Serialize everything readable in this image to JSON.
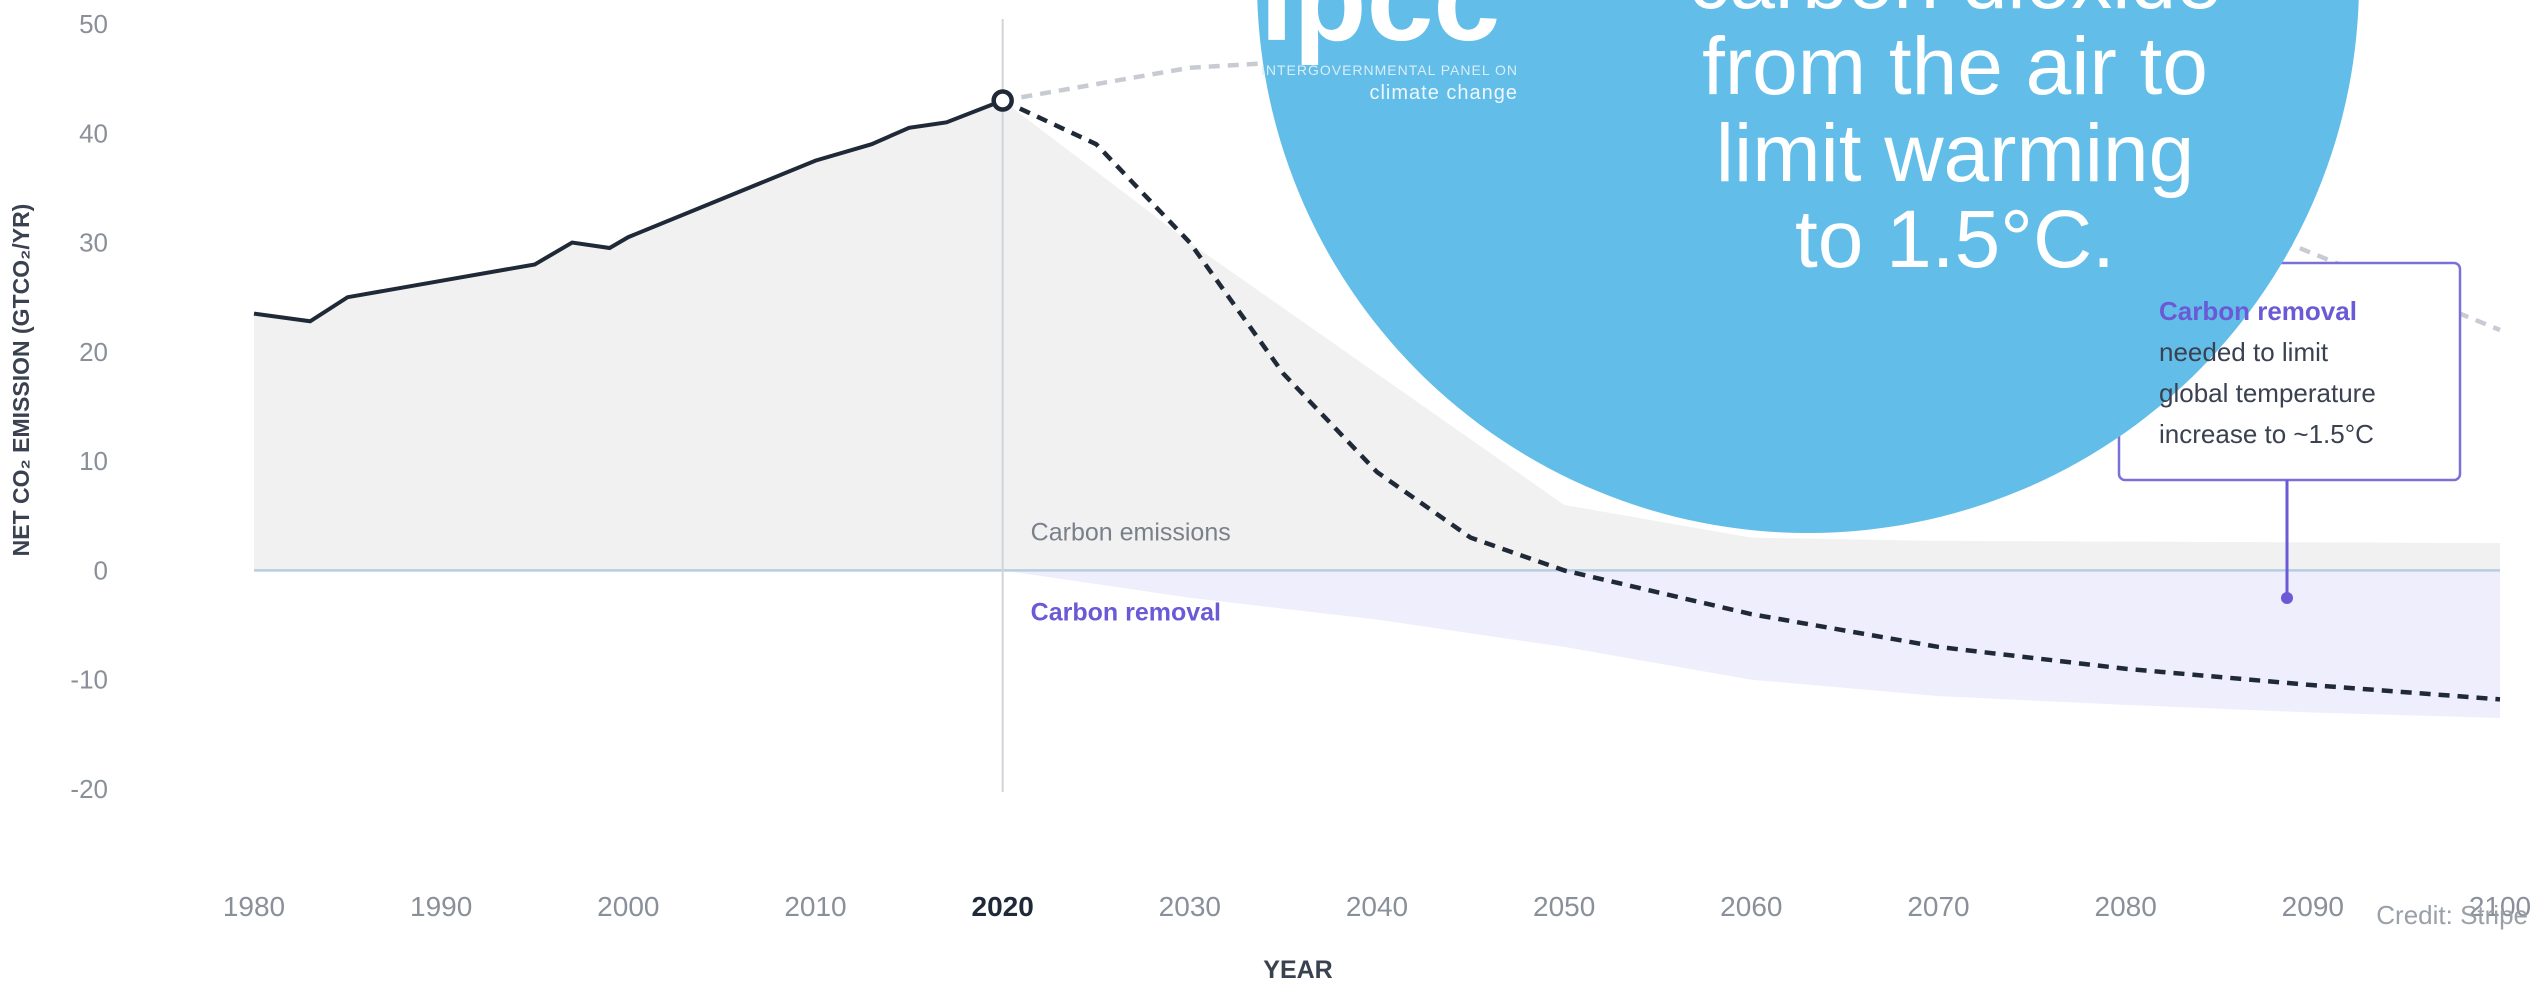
{
  "chart_data": {
    "type": "line",
    "y_label": "NET CO₂ EMISSION (GTCO₂/YR)",
    "x_label": "YEAR",
    "xlim": [
      1980,
      2100
    ],
    "ylim": [
      -20,
      50
    ],
    "xticks": [
      1980,
      1990,
      2000,
      2010,
      2020,
      2030,
      2040,
      2050,
      2060,
      2070,
      2080,
      2090,
      2100
    ],
    "yticks": [
      50,
      40,
      30,
      20,
      10,
      0,
      -10,
      -20
    ],
    "highlight_x": 2020,
    "series": [
      {
        "color": "#1f2937",
        "dash": false,
        "x": [
          1980,
          1983,
          1985,
          1990,
          1995,
          1997,
          1999,
          2000,
          2005,
          2010,
          2013,
          2015,
          2017,
          2020
        ],
        "values": [
          23.5,
          22.8,
          25,
          26.5,
          28,
          30,
          29.5,
          30.5,
          34,
          37.5,
          39,
          40.5,
          41,
          43
        ]
      },
      {
        "color": "#1f2937",
        "dash": true,
        "x": [
          2020,
          2025,
          2030,
          2035,
          2040,
          2045,
          2050,
          2060,
          2070,
          2080,
          2090,
          2100
        ],
        "values": [
          43,
          39,
          30,
          18,
          9,
          3,
          0,
          -4,
          -7,
          -9,
          -10.5,
          -11.8
        ]
      },
      {
        "color": "#c8ccd2",
        "dash": true,
        "x": [
          2020,
          2030,
          2040,
          2050,
          2060,
          2070,
          2080,
          2090,
          2100
        ],
        "values": [
          43,
          46,
          47,
          47,
          45.5,
          42,
          36,
          29,
          22
        ]
      }
    ],
    "areas": [
      {
        "name": "Carbon emissions",
        "color": "#f1f1f1",
        "label_color": "#7a808a",
        "x": [
          1980,
          1983,
          1985,
          1990,
          1995,
          1997,
          1999,
          2000,
          2005,
          2010,
          2013,
          2015,
          2017,
          2020,
          2030,
          2040,
          2050,
          2060,
          2070,
          2100
        ],
        "values": [
          23.5,
          22.8,
          25,
          26.5,
          28,
          30,
          29.5,
          30.5,
          34,
          37.5,
          39,
          40.5,
          41,
          43,
          30,
          18,
          6,
          3,
          2.7,
          2.5
        ]
      },
      {
        "name": "Carbon removal",
        "color": "#efeefc",
        "label_color": "#6a5ad6",
        "x": [
          2020,
          2030,
          2040,
          2050,
          2060,
          2070,
          2080,
          2090,
          2100
        ],
        "values": [
          0,
          -2.5,
          -4.5,
          -7,
          -10,
          -11.5,
          -12.3,
          -13,
          -13.5
        ]
      }
    ],
    "callout": {
      "title": "Carbon removal",
      "lines": [
        "needed to limit",
        "global temperature",
        "increase to ~1.5°C"
      ]
    },
    "overlay": {
      "lines": [
        "carbon dioxide",
        "from the air to",
        "limit warming",
        "to 1.5°C."
      ],
      "logo": "ipcc",
      "logo_sub": [
        "INTERGOVERNMENTAL PANEL ON",
        "climate change"
      ]
    },
    "credit": "Credit: Stripe"
  }
}
